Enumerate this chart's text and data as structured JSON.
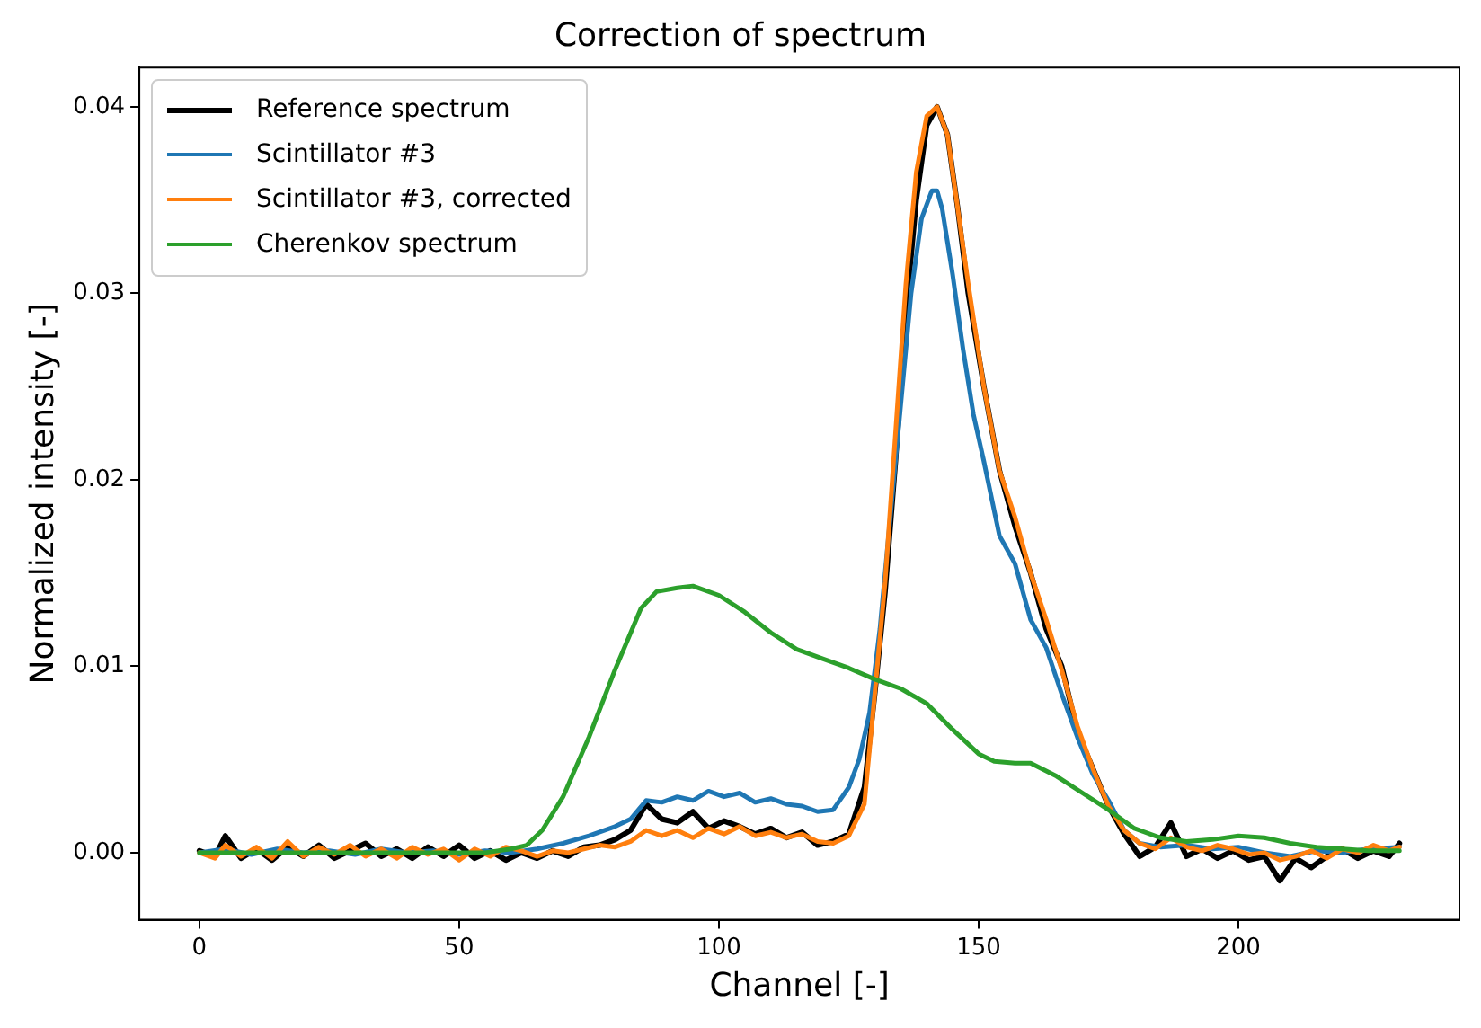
{
  "chart_data": {
    "type": "line",
    "title": "Correction of spectrum",
    "xlabel": "Channel [-]",
    "ylabel": "Normalized intensity [-]",
    "xlim": [
      -11.55,
      242.55
    ],
    "xticks": [
      0,
      50,
      100,
      150,
      200
    ],
    "ylim": [
      -0.0036,
      0.0421
    ],
    "yticks": [
      {
        "value": 0,
        "label": "0.00"
      },
      {
        "value": 0.01,
        "label": "0.01"
      },
      {
        "value": 0.02,
        "label": "0.02"
      },
      {
        "value": 0.03,
        "label": "0.03"
      },
      {
        "value": 0.04,
        "label": "0.04"
      }
    ],
    "grid": false,
    "legend": "top left",
    "marker": "none",
    "line_style": "solid",
    "series": [
      {
        "name": "Reference spectrum",
        "color": "#000000",
        "x": [
          0,
          3,
          5,
          8,
          11,
          14,
          17,
          20,
          23,
          26,
          29,
          32,
          35,
          38,
          41,
          44,
          47,
          50,
          53,
          56,
          59,
          62,
          65,
          68,
          71,
          74,
          77,
          80,
          83,
          86,
          89,
          92,
          95,
          98,
          101,
          104,
          107,
          110,
          113,
          116,
          119,
          122,
          125,
          128,
          130,
          132,
          134,
          136,
          138,
          140,
          142,
          144,
          146,
          148,
          151,
          154,
          157,
          160,
          163,
          166,
          169,
          172,
          175,
          178,
          181,
          184,
          187,
          190,
          193,
          196,
          199,
          202,
          205,
          208,
          211,
          214,
          217,
          220,
          223,
          226,
          229,
          231
        ],
        "values": [
          0.0001,
          -0.0002,
          0.0009,
          -0.0003,
          0.0002,
          -0.0004,
          0.0003,
          -0.0002,
          0.0004,
          -0.0003,
          0.0001,
          0.0005,
          -0.0002,
          0.0002,
          -0.0003,
          0.0003,
          -0.0002,
          0.0004,
          -0.0003,
          0.0001,
          -0.0004,
          0.0,
          -0.0003,
          0.0001,
          -0.0002,
          0.0003,
          0.0004,
          0.0007,
          0.0012,
          0.0026,
          0.0018,
          0.0016,
          0.0022,
          0.0013,
          0.0017,
          0.0014,
          0.001,
          0.0013,
          0.0008,
          0.0011,
          0.0004,
          0.0006,
          0.001,
          0.0035,
          0.0085,
          0.014,
          0.021,
          0.029,
          0.035,
          0.039,
          0.04,
          0.0385,
          0.0345,
          0.03,
          0.025,
          0.0205,
          0.0175,
          0.015,
          0.012,
          0.01,
          0.0065,
          0.0045,
          0.0025,
          0.001,
          -0.0002,
          0.0003,
          0.0016,
          -0.0002,
          0.0002,
          -0.0003,
          0.0001,
          -0.0004,
          -0.0002,
          -0.0015,
          -0.0003,
          -0.0008,
          -0.0002,
          0.0002,
          -0.0003,
          0.0001,
          -0.0002,
          0.0005
        ]
      },
      {
        "name": "Scintillator #3",
        "color": "#1f77b4",
        "x": [
          0,
          5,
          10,
          15,
          20,
          25,
          30,
          35,
          40,
          45,
          50,
          55,
          60,
          65,
          70,
          75,
          80,
          83,
          86,
          89,
          92,
          95,
          98,
          101,
          104,
          107,
          110,
          113,
          116,
          119,
          122,
          125,
          127,
          129,
          131,
          133,
          135,
          137,
          139,
          141,
          142,
          143,
          145,
          147,
          149,
          151,
          154,
          157,
          160,
          163,
          166,
          169,
          172,
          175,
          178,
          181,
          185,
          190,
          195,
          200,
          205,
          210,
          215,
          220,
          225,
          231
        ],
        "values": [
          0.0,
          0.0002,
          -0.0001,
          0.0002,
          0.0,
          0.0001,
          -0.0001,
          0.0002,
          0.0,
          0.0001,
          -0.0001,
          0.0001,
          0.0,
          0.0002,
          0.0005,
          0.0009,
          0.0014,
          0.0018,
          0.0028,
          0.0027,
          0.003,
          0.0028,
          0.0033,
          0.003,
          0.0032,
          0.0027,
          0.0029,
          0.0026,
          0.0025,
          0.0022,
          0.0023,
          0.0035,
          0.005,
          0.0075,
          0.012,
          0.018,
          0.024,
          0.03,
          0.034,
          0.0355,
          0.0355,
          0.0345,
          0.031,
          0.027,
          0.0235,
          0.021,
          0.017,
          0.0155,
          0.0125,
          0.011,
          0.0085,
          0.0062,
          0.0042,
          0.0028,
          0.0012,
          0.0005,
          0.0003,
          0.0004,
          0.0002,
          0.0003,
          0.0,
          -0.0002,
          0.0001,
          0.0,
          0.0002,
          0.0003
        ]
      },
      {
        "name": "Scintillator #3, corrected",
        "color": "#ff7f0e",
        "x": [
          0,
          3,
          5,
          8,
          11,
          14,
          17,
          20,
          23,
          26,
          29,
          32,
          35,
          38,
          41,
          44,
          47,
          50,
          53,
          56,
          59,
          62,
          65,
          68,
          71,
          74,
          77,
          80,
          83,
          86,
          89,
          92,
          95,
          98,
          101,
          104,
          107,
          110,
          113,
          116,
          119,
          122,
          125,
          128,
          130,
          132,
          134,
          136,
          138,
          140,
          142,
          144,
          146,
          148,
          151,
          154,
          157,
          160,
          163,
          166,
          169,
          172,
          175,
          178,
          181,
          184,
          187,
          190,
          193,
          196,
          199,
          202,
          205,
          208,
          211,
          214,
          217,
          220,
          223,
          226,
          229,
          231
        ],
        "values": [
          0.0,
          -0.0003,
          0.0004,
          -0.0002,
          0.0003,
          -0.0003,
          0.0006,
          -0.0002,
          0.0003,
          -0.0001,
          0.0004,
          -0.0002,
          0.0002,
          -0.0003,
          0.0003,
          -0.0001,
          0.0002,
          -0.0004,
          0.0002,
          -0.0002,
          0.0003,
          0.0001,
          -0.0002,
          0.0001,
          0.0,
          0.0002,
          0.0004,
          0.0003,
          0.0006,
          0.0012,
          0.0009,
          0.0012,
          0.0008,
          0.0013,
          0.001,
          0.0014,
          0.0009,
          0.0011,
          0.0008,
          0.001,
          0.0006,
          0.0005,
          0.0009,
          0.0026,
          0.0085,
          0.0145,
          0.0225,
          0.0305,
          0.0365,
          0.0395,
          0.04,
          0.0385,
          0.0345,
          0.0305,
          0.025,
          0.0205,
          0.018,
          0.015,
          0.0125,
          0.0098,
          0.0068,
          0.0045,
          0.0025,
          0.0012,
          0.0005,
          0.0002,
          0.0008,
          0.0003,
          0.0001,
          0.0004,
          0.0002,
          -0.0001,
          0.0,
          -0.0004,
          -0.0002,
          0.0001,
          -0.0003,
          0.0002,
          0.0,
          0.0004,
          0.0001,
          0.0003
        ]
      },
      {
        "name": "Cherenkov spectrum",
        "color": "#2ca02c",
        "x": [
          0,
          10,
          20,
          30,
          40,
          50,
          55,
          60,
          63,
          66,
          70,
          75,
          80,
          85,
          88,
          92,
          95,
          100,
          105,
          110,
          115,
          120,
          125,
          130,
          135,
          140,
          145,
          150,
          153,
          157,
          160,
          165,
          170,
          175,
          180,
          185,
          190,
          195,
          200,
          205,
          210,
          215,
          220,
          225,
          231
        ],
        "values": [
          0.0,
          0.0,
          0.0,
          0.0,
          0.0,
          0.0,
          0.0,
          0.0002,
          0.0004,
          0.0012,
          0.003,
          0.0062,
          0.0098,
          0.0131,
          0.014,
          0.0142,
          0.0143,
          0.0138,
          0.0129,
          0.0118,
          0.0109,
          0.0104,
          0.0099,
          0.0093,
          0.0088,
          0.008,
          0.0066,
          0.0053,
          0.0049,
          0.0048,
          0.0048,
          0.0041,
          0.0032,
          0.0023,
          0.0013,
          0.0008,
          0.0006,
          0.0007,
          0.0009,
          0.0008,
          0.0005,
          0.0003,
          0.0002,
          0.0001,
          0.0001
        ]
      }
    ]
  }
}
